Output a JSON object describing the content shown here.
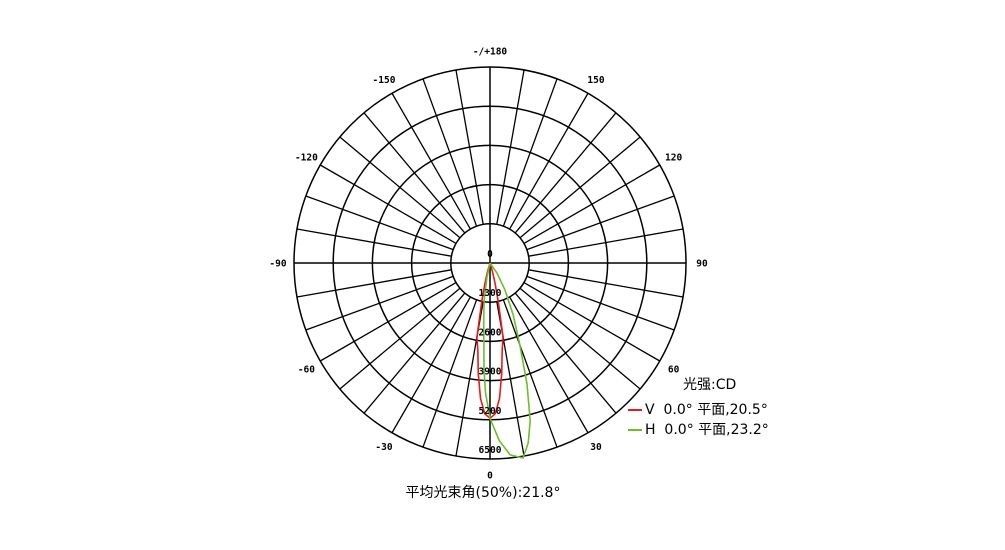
{
  "chart_data": {
    "type": "polar",
    "radial_ticks": [
      "0",
      "1300",
      "2600",
      "3900",
      "5200",
      "6500"
    ],
    "radial_max": 6500,
    "angle_ticks": [
      {
        "angle": 0,
        "label": "0"
      },
      {
        "angle": 30,
        "label": "30"
      },
      {
        "angle": 60,
        "label": "60"
      },
      {
        "angle": 90,
        "label": "90"
      },
      {
        "angle": 120,
        "label": "120"
      },
      {
        "angle": 150,
        "label": "150"
      },
      {
        "angle": 180,
        "label": "-/+180"
      },
      {
        "angle": -150,
        "label": "-150"
      },
      {
        "angle": -120,
        "label": "-120"
      },
      {
        "angle": -90,
        "label": "-90"
      },
      {
        "angle": -60,
        "label": "-60"
      },
      {
        "angle": -30,
        "label": "-30"
      }
    ],
    "grid": true,
    "unit_label": "光强:CD",
    "legend_position": "bottom-right",
    "series": [
      {
        "name": "V  0.0° 平面,20.5°",
        "color": "#e8191e",
        "angles": [
          -20,
          -16,
          -14,
          -12,
          -10,
          -8,
          -6,
          -4,
          -2,
          0,
          2,
          4,
          6,
          8,
          10,
          12,
          14,
          16,
          20
        ],
        "values": [
          0,
          300,
          700,
          1300,
          2500,
          2900,
          3700,
          4500,
          5000,
          5150,
          5000,
          4500,
          3700,
          2900,
          2500,
          1300,
          700,
          300,
          0
        ]
      },
      {
        "name": "H  0.0° 平面,23.2°",
        "color": "#6cbf2a",
        "angles": [
          -16,
          -12,
          -9,
          -6,
          -4.5,
          -3.2,
          -2,
          0,
          3,
          6,
          9.6,
          12,
          14.3,
          17,
          20,
          24,
          29,
          35,
          40
        ],
        "values": [
          0,
          500,
          1250,
          2000,
          2580,
          3570,
          4300,
          5150,
          5900,
          6400,
          6560,
          6100,
          5400,
          4200,
          2900,
          1900,
          1030,
          400,
          0
        ]
      }
    ],
    "footer": "平均光束角(50%):21.8°"
  }
}
